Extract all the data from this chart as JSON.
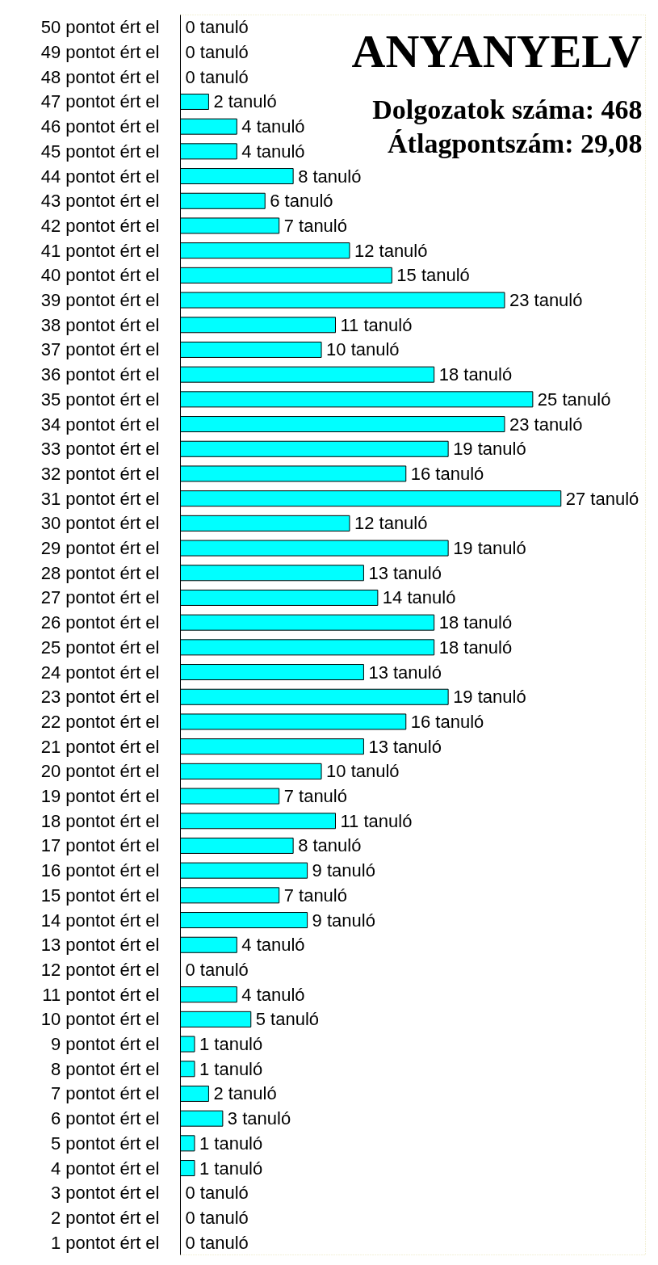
{
  "chart_data": {
    "type": "bar",
    "orientation": "horizontal",
    "title": "ANYANYELV",
    "subtitle": "Dolgozatok száma: 468",
    "annotations": [
      "Átlagpontszám: 29,08"
    ],
    "categories": [
      "50 pontot ért el",
      "49 pontot ért el",
      "48 pontot ért el",
      "47 pontot ért el",
      "46 pontot ért el",
      "45 pontot ért el",
      "44 pontot ért el",
      "43 pontot ért el",
      "42 pontot ért el",
      "41 pontot ért el",
      "40 pontot ért el",
      "39 pontot ért el",
      "38 pontot ért el",
      "37 pontot ért el",
      "36 pontot ért el",
      "35 pontot ért el",
      "34 pontot ért el",
      "33 pontot ért el",
      "32 pontot ért el",
      "31 pontot ért el",
      "30 pontot ért el",
      "29 pontot ért el",
      "28 pontot ért el",
      "27 pontot ért el",
      "26 pontot ért el",
      "25 pontot ért el",
      "24 pontot ért el",
      "23 pontot ért el",
      "22 pontot ért el",
      "21 pontot ért el",
      "20 pontot ért el",
      "19 pontot ért el",
      "18 pontot ért el",
      "17 pontot ért el",
      "16 pontot ért el",
      "15 pontot ért el",
      "14 pontot ért el",
      "13 pontot ért el",
      "12 pontot ért el",
      "11 pontot ért el",
      "10 pontot ért el",
      "9 pontot ért el",
      "8 pontot ért el",
      "7 pontot ért el",
      "6 pontot ért el",
      "5 pontot ért el",
      "4 pontot ért el",
      "3 pontot ért el",
      "2 pontot ért el",
      "1 pontot ért el"
    ],
    "values": [
      0,
      0,
      0,
      2,
      4,
      4,
      8,
      6,
      7,
      12,
      15,
      23,
      11,
      10,
      18,
      25,
      23,
      19,
      16,
      27,
      12,
      19,
      13,
      14,
      18,
      18,
      13,
      19,
      16,
      13,
      10,
      7,
      11,
      8,
      9,
      7,
      9,
      4,
      0,
      4,
      5,
      1,
      1,
      2,
      3,
      1,
      1,
      0,
      0,
      0
    ],
    "value_labels": [
      "0 tanuló",
      "0 tanuló",
      "0 tanuló",
      "2 tanuló",
      "4 tanuló",
      "4 tanuló",
      "8 tanuló",
      "6 tanuló",
      "7 tanuló",
      "12 tanuló",
      "15 tanuló",
      "23 tanuló",
      "11 tanuló",
      "10 tanuló",
      "18 tanuló",
      "25 tanuló",
      "23 tanuló",
      "19 tanuló",
      "16 tanuló",
      "27 tanuló",
      "12 tanuló",
      "19 tanuló",
      "13 tanuló",
      "14 tanuló",
      "18 tanuló",
      "18 tanuló",
      "13 tanuló",
      "19 tanuló",
      "16 tanuló",
      "13 tanuló",
      "10 tanuló",
      "7 tanuló",
      "11 tanuló",
      "8 tanuló",
      "9 tanuló",
      "7 tanuló",
      "9 tanuló",
      "4 tanuló",
      "0 tanuló",
      "4 tanuló",
      "5 tanuló",
      "1 tanuló",
      "1 tanuló",
      "2 tanuló",
      "3 tanuló",
      "1 tanuló",
      "1 tanuló",
      "0 tanuló",
      "0 tanuló",
      "0 tanuló"
    ],
    "color": "#00ffff",
    "xlim": [
      0,
      33
    ],
    "tick_labels": "y"
  }
}
